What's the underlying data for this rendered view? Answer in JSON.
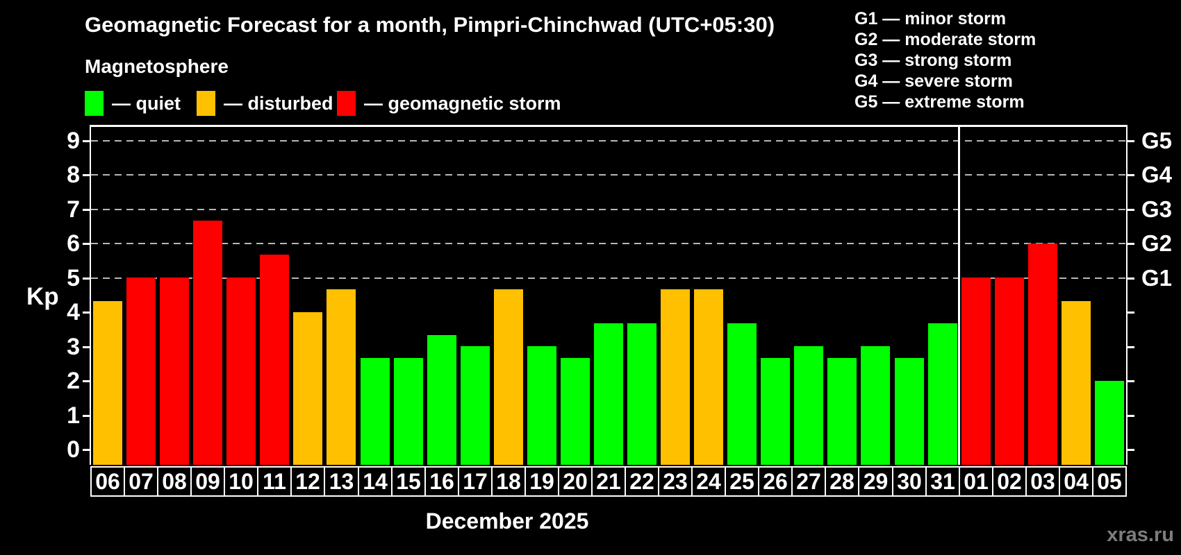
{
  "title": "Geomagnetic Forecast for a month, Pimpri-Chinchwad (UTC+05:30)",
  "subtitle": "Magnetosphere",
  "legend": {
    "items": [
      {
        "label": "— quiet",
        "status": "quiet",
        "color": "#00ff00"
      },
      {
        "label": "— disturbed",
        "status": "disturbed",
        "color": "#ffc000"
      },
      {
        "label": "— geomagnetic storm",
        "status": "storm",
        "color": "#ff0000"
      }
    ]
  },
  "g_legend": [
    "G1 — minor storm",
    "G2 — moderate storm",
    "G3 — strong storm",
    "G4 — severe storm",
    "G5 — extreme storm"
  ],
  "watermark": "xras.ru",
  "chart_data": {
    "type": "bar",
    "title": "Geomagnetic Forecast for a month, Pimpri-Chinchwad (UTC+05:30)",
    "xlabel": "December 2025",
    "ylabel": "Kp",
    "ylim": [
      0,
      9
    ],
    "yticks": [
      0,
      1,
      2,
      3,
      4,
      5,
      6,
      7,
      8,
      9
    ],
    "gridlines_at": [
      5,
      6,
      7,
      8,
      9
    ],
    "grid": "dashed horizontal lines at Kp 5-9",
    "legend_position": "top",
    "right_axis_labels": [
      {
        "value": 5,
        "label": "G1"
      },
      {
        "value": 6,
        "label": "G2"
      },
      {
        "value": 7,
        "label": "G3"
      },
      {
        "value": 8,
        "label": "G4"
      },
      {
        "value": 9,
        "label": "G5"
      }
    ],
    "categories": [
      "06",
      "07",
      "08",
      "09",
      "10",
      "11",
      "12",
      "13",
      "14",
      "15",
      "16",
      "17",
      "18",
      "19",
      "20",
      "21",
      "22",
      "23",
      "24",
      "25",
      "26",
      "27",
      "28",
      "29",
      "30",
      "31",
      "01",
      "02",
      "03",
      "04",
      "05"
    ],
    "values": [
      4.33,
      5,
      5,
      6.67,
      5,
      5.67,
      4,
      4.67,
      2.67,
      2.67,
      3.33,
      3,
      4.67,
      3,
      2.67,
      3.67,
      3.67,
      4.67,
      4.67,
      3.67,
      2.67,
      3,
      2.67,
      3,
      2.67,
      3.67,
      5,
      5,
      6,
      4.33,
      2
    ],
    "statuses": [
      "disturbed",
      "storm",
      "storm",
      "storm",
      "storm",
      "storm",
      "disturbed",
      "disturbed",
      "quiet",
      "quiet",
      "quiet",
      "quiet",
      "disturbed",
      "quiet",
      "quiet",
      "quiet",
      "quiet",
      "disturbed",
      "disturbed",
      "quiet",
      "quiet",
      "quiet",
      "quiet",
      "quiet",
      "quiet",
      "quiet",
      "storm",
      "storm",
      "storm",
      "disturbed",
      "quiet"
    ],
    "colors": {
      "quiet": "#00ff00",
      "disturbed": "#ffc000",
      "storm": "#ff0000"
    },
    "thresholds": {
      "disturbed_min": 4,
      "storm_min": 5
    },
    "month_separator_after_category": "31"
  }
}
